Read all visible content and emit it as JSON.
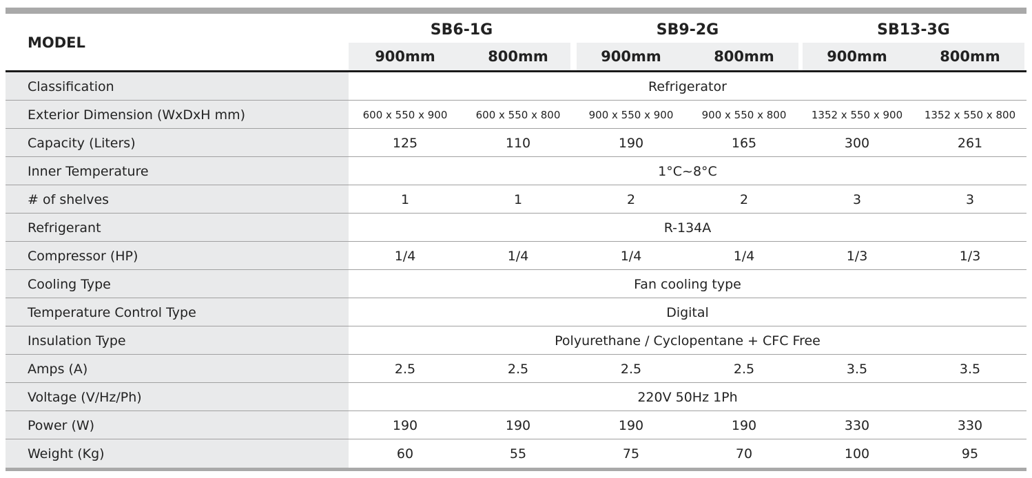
{
  "header": {
    "label": "MODEL",
    "models": [
      "SB6-1G",
      "SB9-2G",
      "SB13-3G"
    ],
    "sizes": [
      "900mm",
      "800mm",
      "900mm",
      "800mm",
      "900mm",
      "800mm"
    ]
  },
  "table": {
    "rows": [
      {
        "label": "Classification",
        "value": "Refrigerator"
      },
      {
        "label": "Exterior Dimension (WxDxH mm)",
        "values": [
          "600 x 550 x 900",
          "600 x 550 x 800",
          "900 x 550 x 900",
          "900 x 550 x 800",
          "1352 x 550 x 900",
          "1352 x 550 x 800"
        ]
      },
      {
        "label": "Capacity (Liters)",
        "values": [
          "125",
          "110",
          "190",
          "165",
          "300",
          "261"
        ]
      },
      {
        "label": "Inner Temperature",
        "value": "1°C~8°C"
      },
      {
        "label": "# of shelves",
        "values": [
          "1",
          "1",
          "2",
          "2",
          "3",
          "3"
        ]
      },
      {
        "label": "Refrigerant",
        "value": "R-134A"
      },
      {
        "label": "Compressor (HP)",
        "values": [
          "1/4",
          "1/4",
          "1/4",
          "1/4",
          "1/3",
          "1/3"
        ]
      },
      {
        "label": "Cooling Type",
        "value": "Fan cooling type"
      },
      {
        "label": "Temperature Control Type",
        "value": "Digital"
      },
      {
        "label": "Insulation Type",
        "value": "Polyurethane / Cyclopentane + CFC Free"
      },
      {
        "label": "Amps (A)",
        "values": [
          "2.5",
          "2.5",
          "2.5",
          "2.5",
          "3.5",
          "3.5"
        ]
      },
      {
        "label": "Voltage (V/Hz/Ph)",
        "value": "220V 50Hz 1Ph"
      },
      {
        "label": "Power (W)",
        "values": [
          "190",
          "190",
          "190",
          "190",
          "330",
          "330"
        ]
      },
      {
        "label": "Weight (Kg)",
        "values": [
          "60",
          "55",
          "75",
          "70",
          "100",
          "95"
        ]
      }
    ]
  }
}
